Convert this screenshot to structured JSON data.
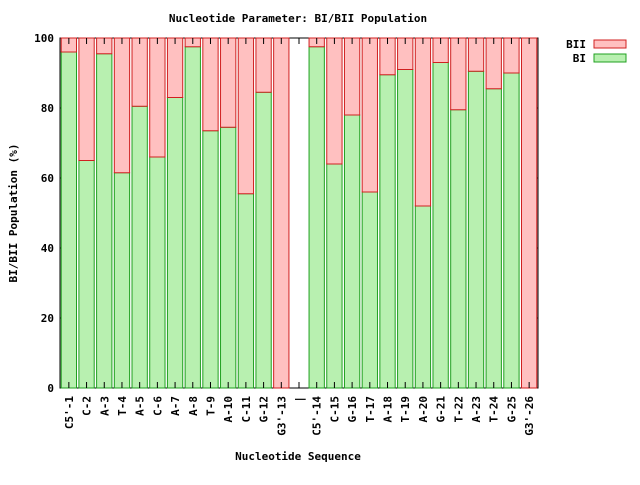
{
  "chart_data": {
    "type": "bar",
    "stacked": true,
    "title": "Nucleotide Parameter: BI/BII Population",
    "xlabel": "Nucleotide Sequence",
    "ylabel": "BI/BII Population (%)",
    "ylim": [
      0,
      100
    ],
    "yticks": [
      0,
      20,
      40,
      60,
      80,
      100
    ],
    "grid": false,
    "legend_position": "top-right, outside plot",
    "categories": [
      "C5'-1",
      "C-2",
      "A-3",
      "T-4",
      "A-5",
      "C-6",
      "A-7",
      "A-8",
      "T-9",
      "A-10",
      "C-11",
      "G-12",
      "G3'-13",
      "|",
      "C5'-14",
      "C-15",
      "G-16",
      "T-17",
      "A-18",
      "T-19",
      "A-20",
      "G-21",
      "T-22",
      "A-23",
      "T-24",
      "G-25",
      "G3'-26"
    ],
    "series": [
      {
        "name": "BI",
        "color": "#b8f0b0",
        "edge_color": "#20a020",
        "values": [
          96,
          65,
          95.5,
          61.5,
          80.5,
          66,
          83,
          97.5,
          73.5,
          74.5,
          55.5,
          84.5,
          0,
          null,
          97.5,
          64,
          78,
          56,
          89.5,
          91,
          52,
          93,
          79.5,
          90.5,
          85.5,
          90,
          0
        ]
      },
      {
        "name": "BII",
        "color": "#ffc0c0",
        "edge_color": "#d02020",
        "values": [
          4,
          35,
          4.5,
          38.5,
          19.5,
          34,
          17,
          2.5,
          26.5,
          25.5,
          44.5,
          15.5,
          100,
          null,
          2.5,
          36,
          22,
          44,
          10.5,
          9,
          48,
          7,
          20.5,
          9.5,
          14.5,
          10,
          100
        ]
      }
    ]
  }
}
